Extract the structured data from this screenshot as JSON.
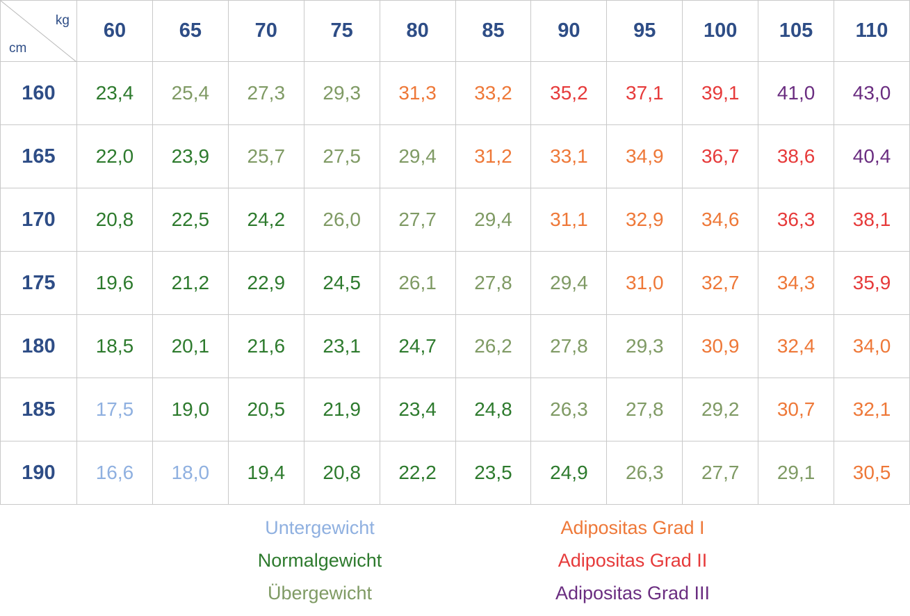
{
  "chart_data": {
    "type": "table",
    "corner": {
      "col_unit": "kg",
      "row_unit": "cm"
    },
    "columns": [
      "60",
      "65",
      "70",
      "75",
      "80",
      "85",
      "90",
      "95",
      "100",
      "105",
      "110"
    ],
    "rows": [
      {
        "label": "160",
        "values": [
          "23,4",
          "25,4",
          "27,3",
          "29,3",
          "31,3",
          "33,2",
          "35,2",
          "37,1",
          "39,1",
          "41,0",
          "43,0"
        ],
        "categories": [
          1,
          2,
          2,
          2,
          3,
          3,
          4,
          4,
          4,
          5,
          5
        ]
      },
      {
        "label": "165",
        "values": [
          "22,0",
          "23,9",
          "25,7",
          "27,5",
          "29,4",
          "31,2",
          "33,1",
          "34,9",
          "36,7",
          "38,6",
          "40,4"
        ],
        "categories": [
          1,
          1,
          2,
          2,
          2,
          3,
          3,
          3,
          4,
          4,
          5
        ]
      },
      {
        "label": "170",
        "values": [
          "20,8",
          "22,5",
          "24,2",
          "26,0",
          "27,7",
          "29,4",
          "31,1",
          "32,9",
          "34,6",
          "36,3",
          "38,1"
        ],
        "categories": [
          1,
          1,
          1,
          2,
          2,
          2,
          3,
          3,
          3,
          4,
          4
        ]
      },
      {
        "label": "175",
        "values": [
          "19,6",
          "21,2",
          "22,9",
          "24,5",
          "26,1",
          "27,8",
          "29,4",
          "31,0",
          "32,7",
          "34,3",
          "35,9"
        ],
        "categories": [
          1,
          1,
          1,
          1,
          2,
          2,
          2,
          3,
          3,
          3,
          4
        ]
      },
      {
        "label": "180",
        "values": [
          "18,5",
          "20,1",
          "21,6",
          "23,1",
          "24,7",
          "26,2",
          "27,8",
          "29,3",
          "30,9",
          "32,4",
          "34,0"
        ],
        "categories": [
          1,
          1,
          1,
          1,
          1,
          2,
          2,
          2,
          3,
          3,
          3
        ]
      },
      {
        "label": "185",
        "values": [
          "17,5",
          "19,0",
          "20,5",
          "21,9",
          "23,4",
          "24,8",
          "26,3",
          "27,8",
          "29,2",
          "30,7",
          "32,1"
        ],
        "categories": [
          0,
          1,
          1,
          1,
          1,
          1,
          2,
          2,
          2,
          3,
          3
        ]
      },
      {
        "label": "190",
        "values": [
          "16,6",
          "18,0",
          "19,4",
          "20,8",
          "22,2",
          "23,5",
          "24,9",
          "26,3",
          "27,7",
          "29,1",
          "30,5"
        ],
        "categories": [
          0,
          0,
          1,
          1,
          1,
          1,
          1,
          2,
          2,
          2,
          3
        ]
      }
    ],
    "legend": [
      {
        "label": "Untergewicht",
        "color": "#8fb0e0"
      },
      {
        "label": "Normalgewicht",
        "color": "#2d7a2d"
      },
      {
        "label": "Übergewicht",
        "color": "#7f9a64"
      },
      {
        "label": "Adipositas Grad I",
        "color": "#ee7838"
      },
      {
        "label": "Adipositas Grad II",
        "color": "#e63a3a"
      },
      {
        "label": "Adipositas Grad III",
        "color": "#6a2d80"
      }
    ],
    "legend_placement": "bottom"
  }
}
